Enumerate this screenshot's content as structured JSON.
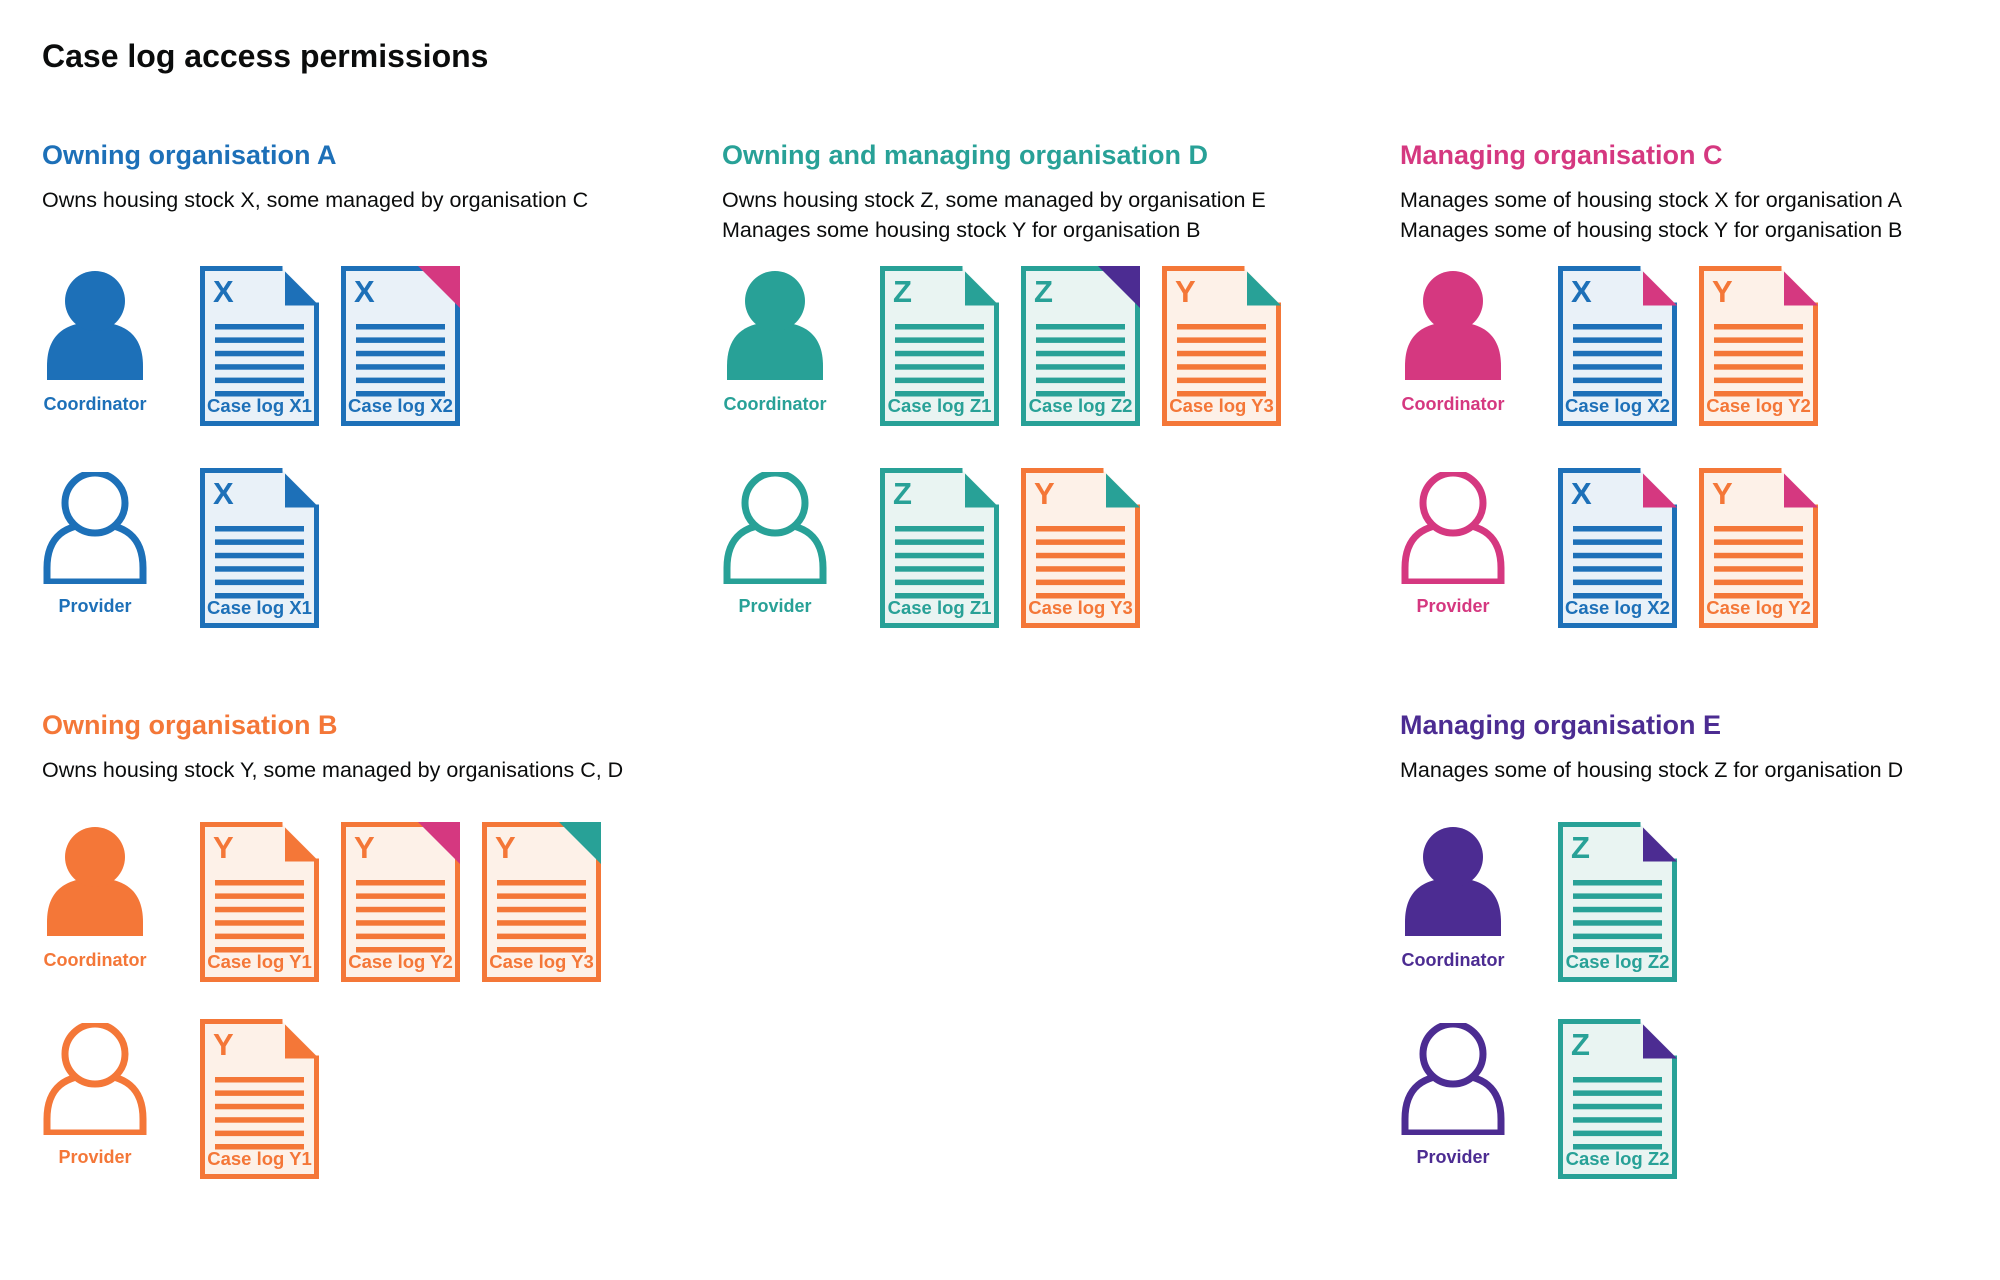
{
  "title": "Case log access permissions",
  "colors": {
    "blue": {
      "main": "#1d70b8",
      "light": "#e9f1f8"
    },
    "teal": {
      "main": "#28a197",
      "light": "#e9f4f2"
    },
    "orange": {
      "main": "#f47738",
      "light": "#fdf1e8"
    },
    "pink": {
      "main": "#d53880",
      "light": "#fbeaf2"
    },
    "purple": {
      "main": "#4c2c92",
      "light": "#ece8f4"
    },
    "text": "#0b0c0c"
  },
  "sections": [
    {
      "heading": "Owning organisation A",
      "color": "blue",
      "description": [
        "Owns housing stock X, some managed by organisation C"
      ],
      "layout": {
        "row": 1,
        "col": 1
      },
      "rows": [
        {
          "role": "Coordinator",
          "person_style": "solid",
          "docs": [
            {
              "letter": "X",
              "label": "Case log X1",
              "color": "blue",
              "fold_color": "blue",
              "fold_style": "dogear"
            },
            {
              "letter": "X",
              "label": "Case log X2",
              "color": "blue",
              "fold_color": "pink",
              "fold_style": "solid"
            }
          ]
        },
        {
          "role": "Provider",
          "person_style": "outline",
          "docs": [
            {
              "letter": "X",
              "label": "Case log X1",
              "color": "blue",
              "fold_color": "blue",
              "fold_style": "dogear"
            }
          ]
        }
      ]
    },
    {
      "heading": "Owning and managing organisation D",
      "color": "teal",
      "description": [
        "Owns housing stock Z, some managed by organisation E",
        "Manages some housing stock Y for organisation B"
      ],
      "layout": {
        "row": 1,
        "col": 2
      },
      "rows": [
        {
          "role": "Coordinator",
          "person_style": "solid",
          "docs": [
            {
              "letter": "Z",
              "label": "Case log Z1",
              "color": "teal",
              "fold_color": "teal",
              "fold_style": "dogear"
            },
            {
              "letter": "Z",
              "label": "Case log Z2",
              "color": "teal",
              "fold_color": "purple",
              "fold_style": "solid"
            },
            {
              "letter": "Y",
              "label": "Case log Y3",
              "color": "orange",
              "fold_color": "teal",
              "fold_style": "dogear"
            }
          ]
        },
        {
          "role": "Provider",
          "person_style": "outline",
          "docs": [
            {
              "letter": "Z",
              "label": "Case log Z1",
              "color": "teal",
              "fold_color": "teal",
              "fold_style": "dogear"
            },
            {
              "letter": "Y",
              "label": "Case log Y3",
              "color": "orange",
              "fold_color": "teal",
              "fold_style": "dogear"
            }
          ]
        }
      ]
    },
    {
      "heading": "Managing organisation C",
      "color": "pink",
      "description": [
        "Manages some of housing stock X for organisation A",
        "Manages some of housing stock Y for organisation B"
      ],
      "layout": {
        "row": 1,
        "col": 3
      },
      "rows": [
        {
          "role": "Coordinator",
          "person_style": "solid",
          "docs": [
            {
              "letter": "X",
              "label": "Case log X2",
              "color": "blue",
              "fold_color": "pink",
              "fold_style": "dogear"
            },
            {
              "letter": "Y",
              "label": "Case log Y2",
              "color": "orange",
              "fold_color": "pink",
              "fold_style": "dogear"
            }
          ]
        },
        {
          "role": "Provider",
          "person_style": "outline",
          "docs": [
            {
              "letter": "X",
              "label": "Case log X2",
              "color": "blue",
              "fold_color": "pink",
              "fold_style": "dogear"
            },
            {
              "letter": "Y",
              "label": "Case log Y2",
              "color": "orange",
              "fold_color": "pink",
              "fold_style": "dogear"
            }
          ]
        }
      ]
    },
    {
      "heading": "Owning organisation B",
      "color": "orange",
      "description": [
        "Owns housing stock Y, some managed by organisations C, D"
      ],
      "layout": {
        "row": 2,
        "col": 1
      },
      "rows": [
        {
          "role": "Coordinator",
          "person_style": "solid",
          "docs": [
            {
              "letter": "Y",
              "label": "Case log Y1",
              "color": "orange",
              "fold_color": "orange",
              "fold_style": "dogear"
            },
            {
              "letter": "Y",
              "label": "Case log Y2",
              "color": "orange",
              "fold_color": "pink",
              "fold_style": "solid"
            },
            {
              "letter": "Y",
              "label": "Case log Y3",
              "color": "orange",
              "fold_color": "teal",
              "fold_style": "solid"
            }
          ]
        },
        {
          "role": "Provider",
          "person_style": "outline",
          "docs": [
            {
              "letter": "Y",
              "label": "Case log Y1",
              "color": "orange",
              "fold_color": "orange",
              "fold_style": "dogear"
            }
          ]
        }
      ]
    },
    {
      "heading": "Managing organisation E",
      "color": "purple",
      "description": [
        "Manages some of housing stock Z for organisation D"
      ],
      "layout": {
        "row": 2,
        "col": 3
      },
      "rows": [
        {
          "role": "Coordinator",
          "person_style": "solid",
          "docs": [
            {
              "letter": "Z",
              "label": "Case log Z2",
              "color": "teal",
              "fold_color": "purple",
              "fold_style": "dogear"
            }
          ]
        },
        {
          "role": "Provider",
          "person_style": "outline",
          "docs": [
            {
              "letter": "Z",
              "label": "Case log Z2",
              "color": "teal",
              "fold_color": "purple",
              "fold_style": "dogear"
            }
          ]
        }
      ]
    }
  ]
}
